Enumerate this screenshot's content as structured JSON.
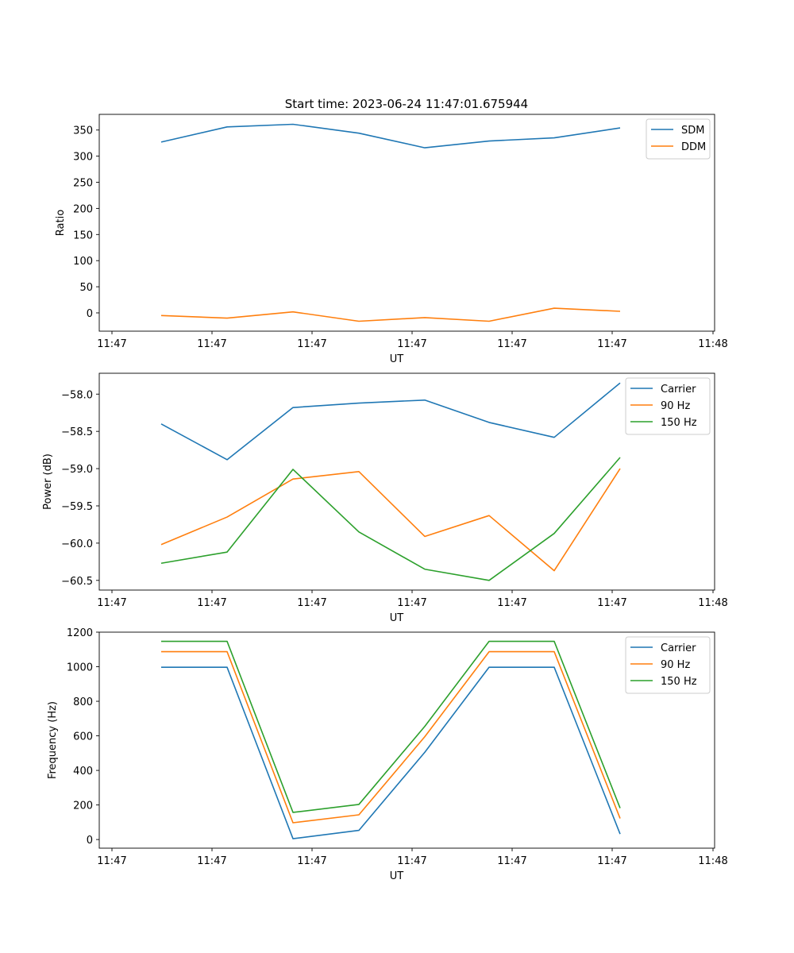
{
  "figure": {
    "title": "Start time: 2023-06-24 11:47:01.675944"
  },
  "colors": {
    "blue": "#1f77b4",
    "orange": "#ff7f0e",
    "green": "#2ca02c"
  },
  "chart_data": [
    {
      "type": "line",
      "title": "Start time: 2023-06-24 11:47:01.675944",
      "xlabel": "UT",
      "ylabel": "Ratio",
      "x_tick_labels": [
        "11:47",
        "11:47",
        "11:47",
        "11:47",
        "11:47",
        "11:47",
        "11:48"
      ],
      "ylim": [
        -35,
        380
      ],
      "yticks": [
        0,
        50,
        100,
        150,
        200,
        250,
        300,
        350
      ],
      "y_tick_labels": [
        "0",
        "50",
        "100",
        "150",
        "200",
        "250",
        "300",
        "350"
      ],
      "legend_position": "top-right",
      "series": [
        {
          "name": "SDM",
          "color": "blue",
          "values": [
            327,
            356,
            361,
            344,
            316,
            329,
            335,
            354
          ]
        },
        {
          "name": "DDM",
          "color": "orange",
          "values": [
            -5,
            -10,
            2,
            -16,
            -9,
            -16,
            9,
            3
          ]
        }
      ]
    },
    {
      "type": "line",
      "xlabel": "UT",
      "ylabel": "Power (dB)",
      "x_tick_labels": [
        "11:47",
        "11:47",
        "11:47",
        "11:47",
        "11:47",
        "11:47",
        "11:48"
      ],
      "ylim": [
        -60.63,
        -57.72
      ],
      "yticks": [
        -60.5,
        -60.0,
        -59.5,
        -59.0,
        -58.5,
        -58.0
      ],
      "y_tick_labels": [
        "−60.5",
        "−60.0",
        "−59.5",
        "−59.0",
        "−58.5",
        "−58.0"
      ],
      "legend_position": "top-right",
      "series": [
        {
          "name": "Carrier",
          "color": "blue",
          "values": [
            -58.4,
            -58.88,
            -58.18,
            -58.12,
            -58.08,
            -58.38,
            -58.58,
            -57.85
          ]
        },
        {
          "name": "90 Hz",
          "color": "orange",
          "values": [
            -60.02,
            -59.65,
            -59.14,
            -59.04,
            -59.91,
            -59.63,
            -60.37,
            -59.0
          ]
        },
        {
          "name": "150 Hz",
          "color": "green",
          "values": [
            -60.27,
            -60.12,
            -59.01,
            -59.85,
            -60.35,
            -60.5,
            -59.87,
            -58.85
          ]
        }
      ]
    },
    {
      "type": "line",
      "xlabel": "UT",
      "ylabel": "Frequency (Hz)",
      "x_tick_labels": [
        "11:47",
        "11:47",
        "11:47",
        "11:47",
        "11:47",
        "11:47",
        "11:48"
      ],
      "ylim": [
        -50,
        1200
      ],
      "yticks": [
        0,
        200,
        400,
        600,
        800,
        1000,
        1200
      ],
      "y_tick_labels": [
        "0",
        "200",
        "400",
        "600",
        "800",
        "1000",
        "1200"
      ],
      "legend_position": "top-right",
      "series": [
        {
          "name": "Carrier",
          "color": "blue",
          "values": [
            997,
            997,
            5,
            53,
            505,
            997,
            997,
            32
          ]
        },
        {
          "name": "90 Hz",
          "color": "orange",
          "values": [
            1087,
            1087,
            97,
            143,
            595,
            1087,
            1087,
            122
          ]
        },
        {
          "name": "150 Hz",
          "color": "green",
          "values": [
            1147,
            1147,
            157,
            203,
            655,
            1147,
            1147,
            182
          ]
        }
      ]
    }
  ]
}
